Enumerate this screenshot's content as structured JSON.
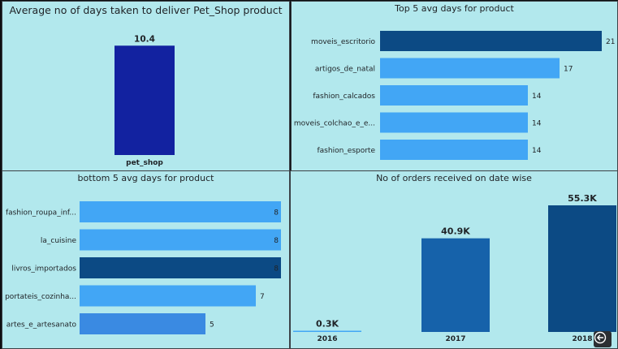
{
  "colors": {
    "panel_bg": "#b2e8ed",
    "dark_navy": "#1222a0",
    "dark_blue": "#0c4a84",
    "light_blue": "#42a6f5",
    "mid_blue": "#3a8ae2",
    "year_blue": "#1662aa"
  },
  "panels": {
    "avg_days": {
      "title": "Average no of days taken to deliver Pet_Shop product"
    },
    "top5": {
      "title": "Top 5 avg days for product"
    },
    "bottom5": {
      "title": "bottom 5 avg days for product"
    },
    "orders": {
      "title": "No of orders received on date wise"
    }
  },
  "nav": {
    "back_icon": "back-arrow-icon"
  },
  "chart_data": [
    {
      "id": "avg_days",
      "type": "bar",
      "categories": [
        "pet_shop"
      ],
      "values": [
        10.4
      ],
      "value_labels": [
        "10.4"
      ],
      "ylim": [
        0,
        11.5
      ],
      "colors": [
        "#1222a0"
      ]
    },
    {
      "id": "top5",
      "type": "bar",
      "orientation": "horizontal",
      "categories": [
        "moveis_escritorio",
        "artigos_de_natal",
        "fashion_calcados",
        "moveis_colchao_e_e...",
        "fashion_esporte"
      ],
      "values": [
        21,
        17,
        14,
        14,
        14
      ],
      "value_labels": [
        "21",
        "17",
        "14",
        "14",
        "14"
      ],
      "xlim": [
        0,
        21
      ],
      "colors": [
        "#0c4a84",
        "#42a6f5",
        "#42a6f5",
        "#42a6f5",
        "#42a6f5"
      ]
    },
    {
      "id": "bottom5",
      "type": "bar",
      "orientation": "horizontal",
      "categories": [
        "fashion_roupa_inf...",
        "la_cuisine",
        "livros_importados",
        "portateis_cozinha...",
        "artes_e_artesanato"
      ],
      "values": [
        8,
        8,
        8,
        7,
        5
      ],
      "value_labels": [
        "8",
        "8",
        "8",
        "7",
        "5"
      ],
      "xlim": [
        0,
        8
      ],
      "colors": [
        "#42a6f5",
        "#42a6f5",
        "#0c4a84",
        "#42a6f5",
        "#3a8ae2"
      ]
    },
    {
      "id": "orders",
      "type": "bar",
      "categories": [
        "2016",
        "2017",
        "2018"
      ],
      "values": [
        0.3,
        40.9,
        55.3
      ],
      "value_labels": [
        "0.3K",
        "40.9K",
        "55.3K"
      ],
      "ylim": [
        0,
        55.3
      ],
      "colors": [
        "#42a6f5",
        "#1662aa",
        "#0c4a84"
      ]
    }
  ]
}
